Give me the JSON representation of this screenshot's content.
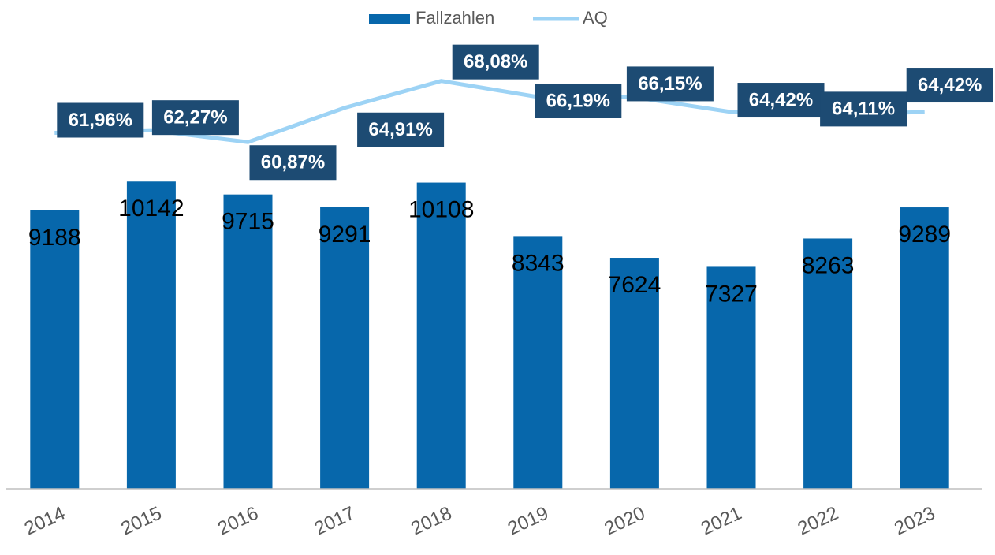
{
  "chart_data": {
    "type": "bar-line",
    "categories": [
      "2014",
      "2015",
      "2016",
      "2017",
      "2018",
      "2019",
      "2020",
      "2021",
      "2022",
      "2023"
    ],
    "series": [
      {
        "name": "Fallzahlen",
        "type": "bar",
        "color": "#0767ab",
        "values": [
          9188,
          10142,
          9715,
          9291,
          10108,
          8343,
          7624,
          7327,
          8263,
          9289
        ]
      },
      {
        "name": "AQ",
        "type": "line",
        "axis": "y2",
        "color": "#9dd3f5",
        "values": [
          61.96,
          62.27,
          60.87,
          64.91,
          68.08,
          66.19,
          66.15,
          64.42,
          64.11,
          64.42
        ],
        "value_labels": [
          "61,96%",
          "62,27%",
          "60,87%",
          "64,91%",
          "68,08%",
          "66,19%",
          "66,15%",
          "64,42%",
          "64,11%",
          "64,42%"
        ]
      }
    ],
    "ylim": [
      0,
      14000
    ],
    "y2lim": [
      20,
      70
    ],
    "legend": "top"
  }
}
